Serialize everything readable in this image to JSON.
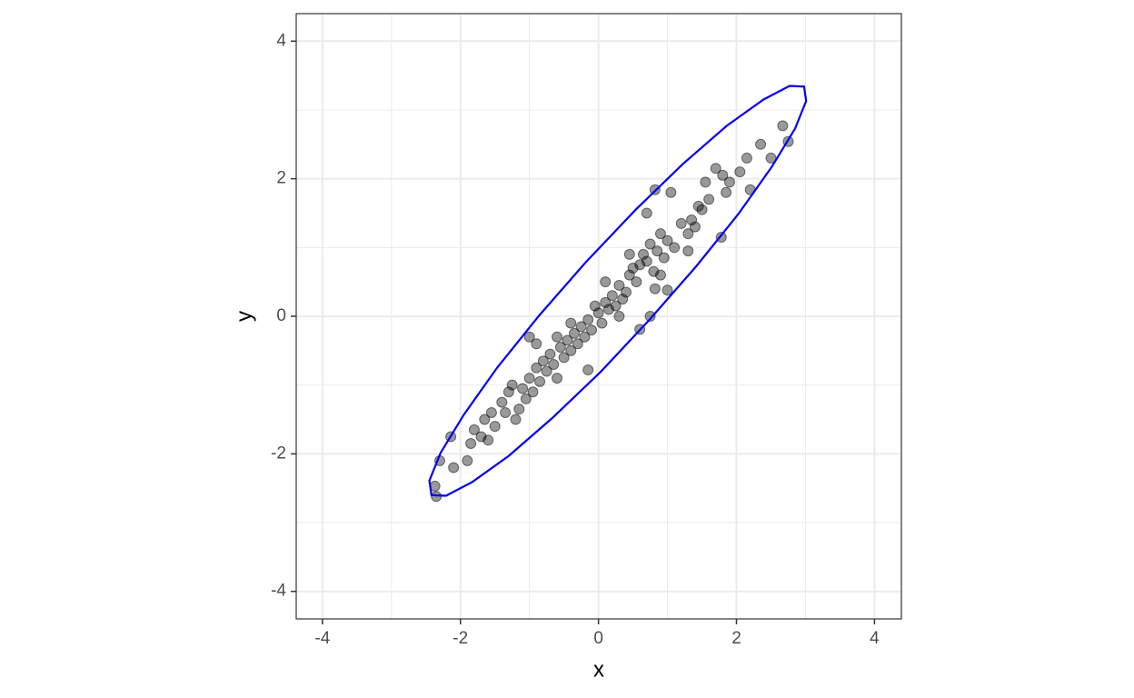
{
  "chart_data": {
    "type": "scatter",
    "x_label": "x",
    "y_label": "y",
    "xlim": [
      -4.38,
      4.39
    ],
    "ylim": [
      -4.4,
      4.4
    ],
    "xticks": [
      -4,
      -2,
      0,
      2,
      4
    ],
    "yticks": [
      -4,
      -2,
      0,
      2,
      4
    ],
    "minor_breaks": [
      -3,
      -1,
      1,
      3
    ],
    "grid": true,
    "series": [
      {
        "color": "#000000",
        "x": [
          2.67,
          2.75,
          2.5,
          2.35,
          2.2,
          2.15,
          2.05,
          1.9,
          1.85,
          1.8,
          1.7,
          1.6,
          1.5,
          1.45,
          1.4,
          1.35,
          1.3,
          1.2,
          1.1,
          1.05,
          1.0,
          0.95,
          0.9,
          0.85,
          0.82,
          0.8,
          0.75,
          0.7,
          0.65,
          0.6,
          0.55,
          0.5,
          0.45,
          0.4,
          0.35,
          0.3,
          0.25,
          0.2,
          0.15,
          0.1,
          0.05,
          0.0,
          -0.05,
          -0.1,
          -0.15,
          -0.2,
          -0.25,
          -0.3,
          -0.35,
          -0.4,
          -0.45,
          -0.5,
          -0.55,
          -0.6,
          -0.65,
          -0.7,
          -0.75,
          -0.8,
          -0.85,
          -0.9,
          -0.95,
          -1.0,
          -1.05,
          -1.1,
          -1.15,
          -1.2,
          -1.3,
          -1.35,
          -1.4,
          -1.5,
          -1.55,
          -1.6,
          -1.65,
          -1.7,
          -1.8,
          -1.85,
          -1.9,
          -2.1,
          -2.14,
          -2.3,
          -2.37,
          -2.35,
          1.78,
          0.6,
          0.75,
          1.0,
          -0.15,
          0.82,
          1.3,
          0.9,
          0.3,
          -0.4,
          -0.9,
          -1.25,
          0.1,
          0.7,
          1.55,
          -0.6,
          0.45,
          -1.0
        ],
        "y": [
          2.77,
          2.54,
          2.3,
          2.5,
          1.84,
          2.3,
          2.1,
          1.95,
          1.8,
          2.05,
          2.15,
          1.7,
          1.55,
          1.6,
          1.3,
          1.4,
          1.2,
          1.35,
          1.0,
          1.8,
          1.1,
          0.85,
          1.2,
          0.95,
          1.84,
          0.65,
          1.05,
          0.8,
          0.9,
          0.75,
          0.5,
          0.7,
          0.6,
          0.35,
          0.25,
          0.45,
          0.15,
          0.3,
          0.1,
          0.2,
          -0.1,
          0.05,
          0.15,
          -0.2,
          -0.05,
          -0.3,
          -0.15,
          -0.4,
          -0.25,
          -0.5,
          -0.35,
          -0.6,
          -0.45,
          -0.3,
          -0.7,
          -0.55,
          -0.8,
          -0.65,
          -0.95,
          -0.75,
          -1.1,
          -0.9,
          -1.2,
          -1.05,
          -1.35,
          -1.5,
          -1.1,
          -1.4,
          -1.25,
          -1.6,
          -1.4,
          -1.8,
          -1.5,
          -1.75,
          -1.65,
          -1.85,
          -2.1,
          -2.2,
          -1.75,
          -2.1,
          -2.47,
          -2.62,
          1.15,
          -0.19,
          0.0,
          0.38,
          -0.78,
          0.4,
          0.95,
          0.6,
          0.0,
          -0.1,
          -0.4,
          -1.0,
          0.5,
          1.5,
          1.95,
          -0.9,
          0.9,
          -0.3
        ]
      }
    ],
    "ellipse": {
      "color": "#0000ee",
      "x": [
        2.98,
        2.77,
        2.39,
        1.86,
        1.23,
        0.54,
        -0.18,
        -0.86,
        -1.47,
        -1.95,
        -2.29,
        -2.45,
        -2.42,
        -2.21,
        -1.83,
        -1.3,
        -0.67,
        0.03,
        0.74,
        1.42,
        2.03,
        2.51,
        2.85,
        3.01
      ],
      "y": [
        3.34,
        3.35,
        3.15,
        2.77,
        2.22,
        1.55,
        0.79,
        0.01,
        -0.75,
        -1.43,
        -1.99,
        -2.39,
        -2.6,
        -2.61,
        -2.41,
        -2.03,
        -1.48,
        -0.81,
        -0.05,
        0.73,
        1.49,
        2.17,
        2.73,
        3.13
      ]
    }
  }
}
